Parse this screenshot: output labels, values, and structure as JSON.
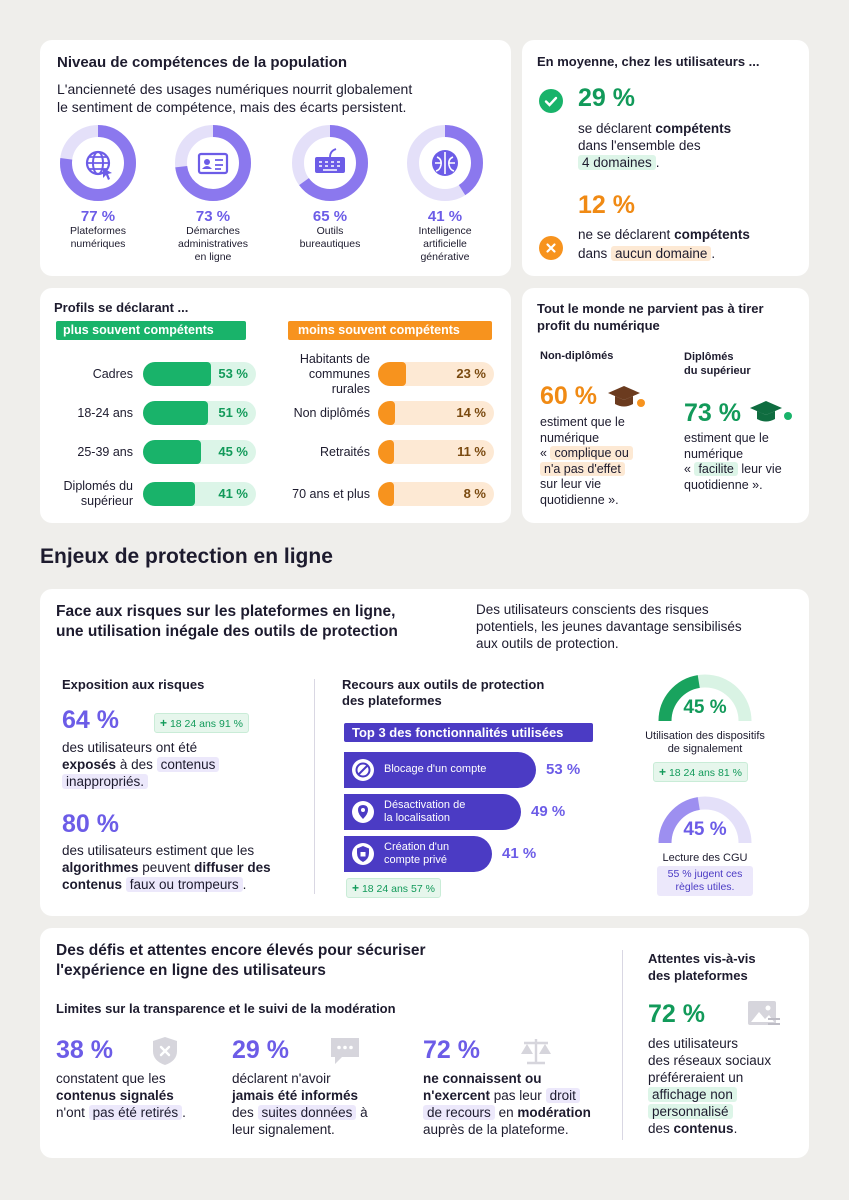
{
  "competence": {
    "title": "Niveau de compétences de la population",
    "subtitle_l1": "L'ancienneté des usages numériques nourrit globalement",
    "subtitle_l2": "le sentiment de compétence, mais des écarts persistent.",
    "items": [
      {
        "pct": "77 %",
        "value": 77,
        "icon": "globe-cursor-icon",
        "label": [
          "Plateformes",
          "numériques"
        ]
      },
      {
        "pct": "73 %",
        "value": 73,
        "icon": "id-card-icon",
        "label": [
          "Démarches",
          "administratives",
          "en ligne"
        ]
      },
      {
        "pct": "65 %",
        "value": 65,
        "icon": "keyboard-icon",
        "label": [
          "Outils",
          "bureautiques"
        ]
      },
      {
        "pct": "41 %",
        "value": 41,
        "icon": "brain-circuit-icon",
        "label": [
          "Intelligence",
          "artificielle",
          "générative"
        ]
      }
    ]
  },
  "average": {
    "title": "En moyenne, chez les utilisateurs ...",
    "a_pct": "29 %",
    "a_l1": "se déclarent",
    "a_l1b": "compétents",
    "a_l2": "dans l'ensemble des",
    "a_l3": "4 domaines",
    "a_dot": ".",
    "b_pct": "12 %",
    "b_l1": "ne se déclarent",
    "b_l1b": "compétents",
    "b_l2": "dans",
    "b_l2h": "aucun domaine",
    "b_dot": "."
  },
  "profiles": {
    "title": "Profils se déclarant ...",
    "more_tag": "plus souvent compétents",
    "less_tag": "moins souvent compétents",
    "more": [
      {
        "label": [
          "Cadres"
        ],
        "pct": "53 %",
        "value": 53
      },
      {
        "label": [
          "18-24 ans"
        ],
        "pct": "51 %",
        "value": 51
      },
      {
        "label": [
          "25-39 ans"
        ],
        "pct": "45 %",
        "value": 45
      },
      {
        "label": [
          "Diplomés du",
          "supérieur"
        ],
        "pct": "41 %",
        "value": 41
      }
    ],
    "less": [
      {
        "label": [
          "Habitants de",
          "communes",
          "rurales"
        ],
        "pct": "23 %",
        "value": 23
      },
      {
        "label": [
          "Non diplômés"
        ],
        "pct": "14 %",
        "value": 14
      },
      {
        "label": [
          "Retraités"
        ],
        "pct": "11 %",
        "value": 11
      },
      {
        "label": [
          "70 ans et plus"
        ],
        "pct": "8 %",
        "value": 8
      }
    ],
    "colors": {
      "green": "#19b36a",
      "green_bg": "#dcf5e8",
      "orange": "#f7931e",
      "orange_bg": "#fde9d4"
    }
  },
  "benefit": {
    "title_l1": "Tout le monde ne parvient pas à tirer",
    "title_l2": "profit du numérique",
    "left_head": "Non-diplômés",
    "left_pct": "60 %",
    "left_l1": "estiment que le",
    "left_l2": "numérique",
    "left_l3a": "«",
    "left_l3h": "complique ou",
    "left_l4h": "n'a pas d'effet",
    "left_l5": "sur leur vie",
    "left_l6": "quotidienne ».",
    "right_head_l1": "Diplômés",
    "right_head_l2": "du supérieur",
    "right_pct": "73 %",
    "right_l1": "estiment que le",
    "right_l2": "numérique",
    "right_l3a": "«",
    "right_l3h": "facilite",
    "right_l3b": "leur vie",
    "right_l4": "quotidienne »."
  },
  "section_heading": "Enjeux de protection en ligne",
  "risks": {
    "title_l1": "Face aux risques sur les plateformes en ligne,",
    "title_l2": "une utilisation inégale des outils de protection",
    "intro_l1": "Des utilisateurs conscients des risques",
    "intro_l2": "potentiels, les jeunes davantage sensibilisés",
    "intro_l3": "aux outils de protection.",
    "exposure_head": "Exposition aux risques",
    "exp_pct": "64 %",
    "exp_badge_age": "18 24 ans",
    "exp_badge_val": "91 %",
    "exp_l1": "des utilisateurs ont été",
    "exp_l2b": "exposés",
    "exp_l2": "à des",
    "exp_l2h": "contenus",
    "exp_l3h": "inappropriés.",
    "alg_pct": "80 %",
    "alg_l1": "des utilisateurs estiment que les",
    "alg_l2b": "algorithmes",
    "alg_l2": "peuvent",
    "alg_l2b2": "diffuser des",
    "alg_l3b": "contenus",
    "alg_l3h": "faux ou trompeurs",
    "alg_dot": ".",
    "tools_head_l1": "Recours aux outils de protection",
    "tools_head_l2": "des plateformes",
    "top3": "Top 3 des fonctionnalités utilisées",
    "features": [
      {
        "label": [
          "Blocage d'un compte"
        ],
        "pct": "53 %",
        "value": 53,
        "icon": "block-icon"
      },
      {
        "label": [
          "Désactivation de",
          "la localisation"
        ],
        "pct": "49 %",
        "value": 49,
        "icon": "location-off-icon"
      },
      {
        "label": [
          "Création d'un",
          "compte privé"
        ],
        "pct": "41 %",
        "value": 41,
        "icon": "shield-lock-icon"
      }
    ],
    "feat_badge_age": "18 24 ans",
    "feat_badge_val": "57 %",
    "report_pct": "45 %",
    "report_value": 45,
    "report_l1": "Utilisation des dispositifs",
    "report_l2": "de signalement",
    "report_badge_age": "18 24 ans",
    "report_badge_val": "81 %",
    "cgu_pct": "45 %",
    "cgu_value": 45,
    "cgu_label": "Lecture des CGU",
    "cgu_note_l1": "55 % jugent ces",
    "cgu_note_l2": "règles utiles."
  },
  "challenges": {
    "title_l1": "Des défis et attentes encore élevés pour sécuriser",
    "title_l2": "l'expérience en ligne des utilisateurs",
    "subtitle": "Limites sur la transparence et le suivi de la modération",
    "c1_pct": "38 %",
    "c1_l1": "constatent que les",
    "c1_l2b": "contenus signalés",
    "c1_l3": "n'ont",
    "c1_l3h": "pas été retirés",
    "c1_dot": ".",
    "c2_pct": "29 %",
    "c2_l1": "déclarent n'avoir",
    "c2_l2b": "jamais été informés",
    "c2_l3": "des",
    "c2_l3h": "suites données",
    "c2_l3c": "à",
    "c2_l4": "leur signalement.",
    "c3_pct": "72 %",
    "c3_l1b": "ne connaissent ou",
    "c3_l2b": "n'exercent",
    "c3_l2": "pas leur",
    "c3_l2h": "droit",
    "c3_l3h": "de recours",
    "c3_l3": "en",
    "c3_l3b": "modération",
    "c3_l4": "auprès de la plateforme.",
    "exp_head_l1": "Attentes vis-à-vis",
    "exp_head_l2": "des plateformes",
    "exp_pct": "72 %",
    "exp_l1": "des utilisateurs",
    "exp_l2": "des réseaux sociaux",
    "exp_l3": "préféreraient un",
    "exp_l4h": "affichage non",
    "exp_l5h": "personnalisé",
    "exp_l6": "des",
    "exp_l6b": "contenus",
    "exp_dot": "."
  }
}
